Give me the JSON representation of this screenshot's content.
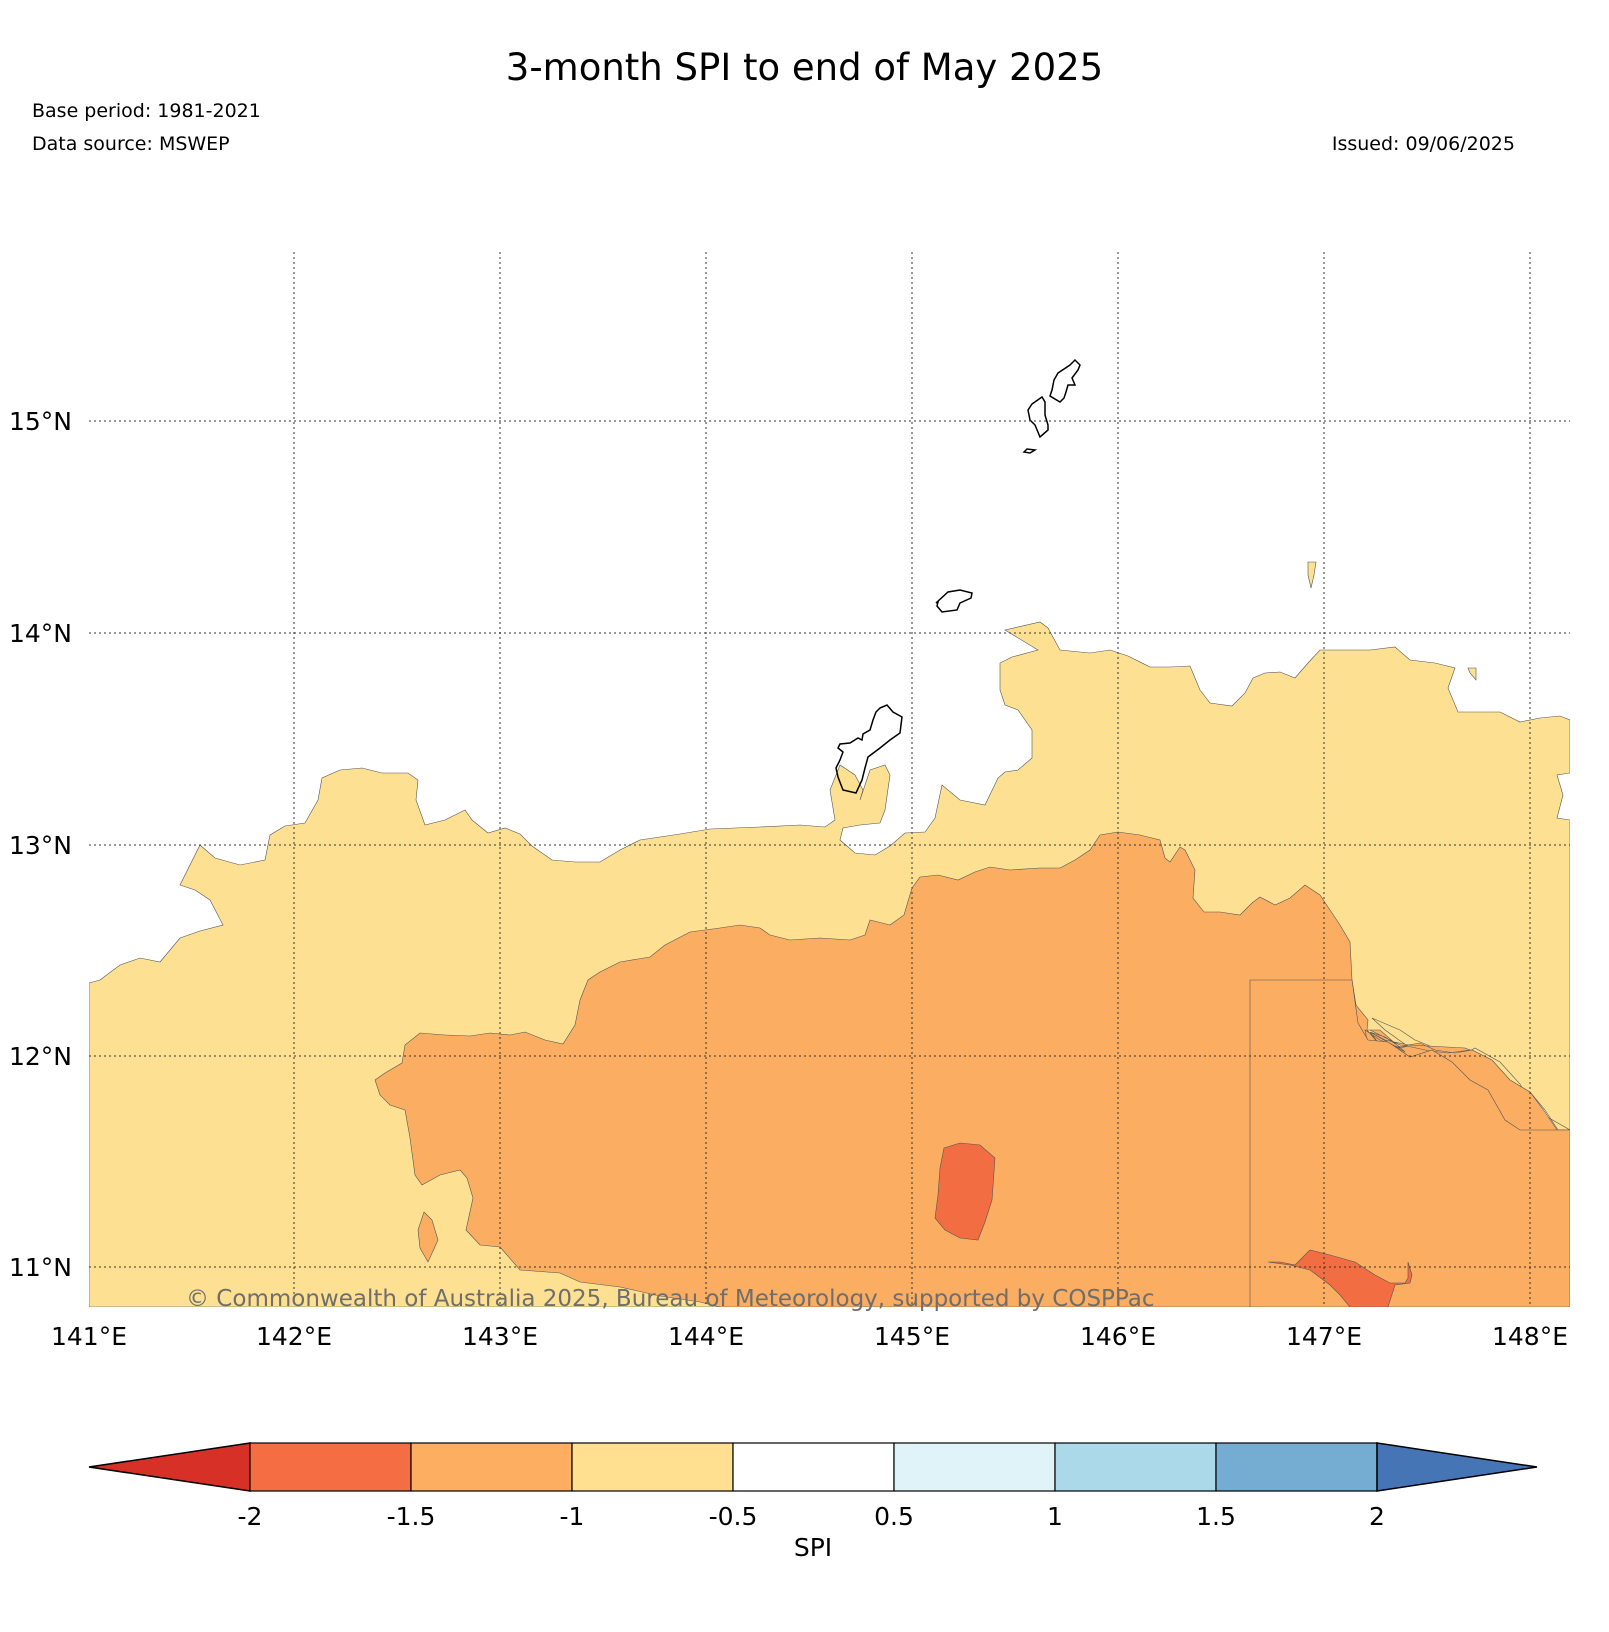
{
  "header": {
    "title": "3-month SPI to end of May 2025",
    "base_period": "Base period: 1981-2021",
    "data_source": "Data source: MSWEP",
    "issued": "Issued: 09/06/2025"
  },
  "map": {
    "lon_labels": [
      "141°E",
      "142°E",
      "143°E",
      "144°E",
      "145°E",
      "146°E",
      "147°E",
      "148°E"
    ],
    "lat_labels": [
      "15°N",
      "14°N",
      "13°N",
      "12°N",
      "11°N"
    ],
    "copyright": "© Commonwealth of Australia 2025, Bureau of Meteorology, supported by COSPPac",
    "colors": {
      "spi_minus_1_to_minus_0_5": "#fde092",
      "spi_minus_1_5_to_minus_1": "#fbad62",
      "spi_minus_2_to_minus_1_5": "#f36d43",
      "land_outline": "#000000"
    }
  },
  "colorbar": {
    "label": "SPI",
    "ticks": [
      "-2",
      "-1.5",
      "-1",
      "-0.5",
      "0.5",
      "1",
      "1.5",
      "2"
    ],
    "colors": [
      "#d73027",
      "#f46d43",
      "#fdae61",
      "#fee090",
      "#ffffff",
      "#e0f3f8",
      "#abd9e9",
      "#74add1",
      "#4575b4"
    ]
  }
}
